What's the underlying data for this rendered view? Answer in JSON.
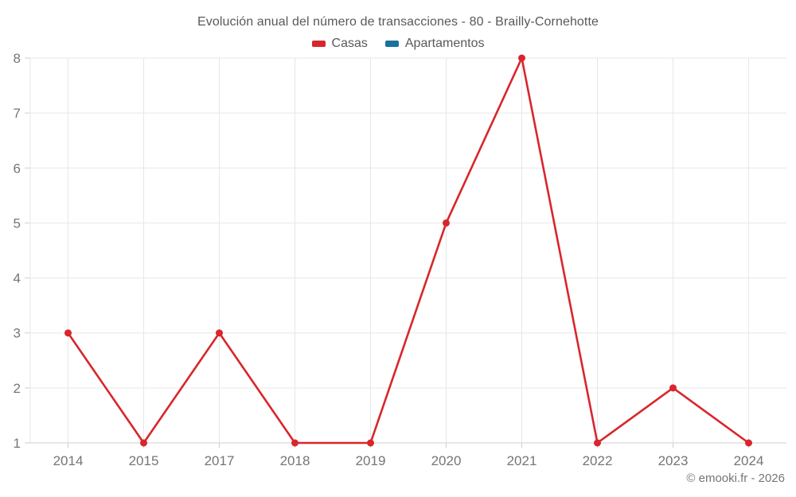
{
  "title": "Evolución anual del número de transacciones - 80 - Brailly-Cornehotte",
  "legend": [
    {
      "label": "Casas",
      "color": "#d8262c"
    },
    {
      "label": "Apartamentos",
      "color": "#17739c"
    }
  ],
  "footer": "© emooki.fr - 2026",
  "colors": {
    "grid": "#e7e7e7",
    "axis": "#cfcfcf",
    "tick_label": "#757575",
    "title_text": "#595959"
  },
  "chart_data": {
    "type": "line",
    "categories": [
      "2014",
      "2015",
      "2017",
      "2018",
      "2019",
      "2020",
      "2021",
      "2022",
      "2023",
      "2024"
    ],
    "series": [
      {
        "name": "Casas",
        "color": "#d8262c",
        "values": [
          3,
          1,
          3,
          1,
          1,
          5,
          8,
          1,
          2,
          1
        ]
      },
      {
        "name": "Apartamentos",
        "color": "#17739c",
        "values": []
      }
    ],
    "title": "Evolución anual del número de transacciones - 80 - Brailly-Cornehotte",
    "xlabel": "",
    "ylabel": "",
    "ylim": [
      1,
      8
    ],
    "yticks": [
      1,
      2,
      3,
      4,
      5,
      6,
      7,
      8
    ],
    "grid": true,
    "legend_position": "top"
  }
}
